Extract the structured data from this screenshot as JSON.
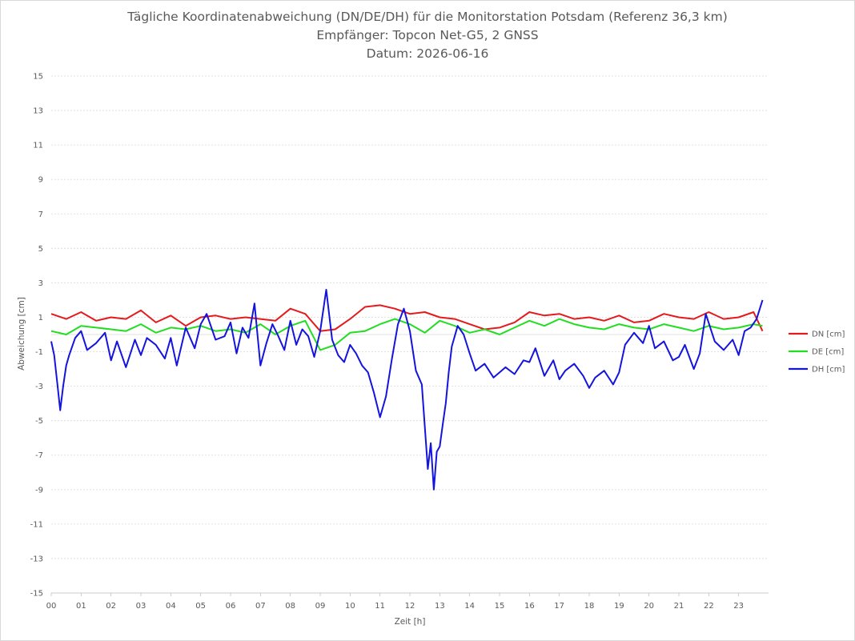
{
  "chart_data": {
    "type": "line",
    "title": "Tägliche Koordinatenabweichung (DN/DE/DH) für die Monitorstation Potsdam (Referenz 36,3 km)",
    "subtitle": "Empfänger: Topcon Net-G5, 2 GNSS",
    "date_line": "Datum: 2026-06-16",
    "xlabel": "Zeit [h]",
    "ylabel": "Abweichung [cm]",
    "xlim": [
      0,
      24
    ],
    "ylim": [
      -15,
      15
    ],
    "x_ticks": [
      "00",
      "01",
      "02",
      "03",
      "04",
      "05",
      "06",
      "07",
      "08",
      "09",
      "10",
      "11",
      "12",
      "13",
      "14",
      "15",
      "16",
      "17",
      "18",
      "19",
      "20",
      "21",
      "22",
      "23"
    ],
    "y_ticks": [
      15,
      13,
      11,
      9,
      7,
      5,
      3,
      1,
      -1,
      -3,
      -5,
      -7,
      -9,
      -11,
      -13,
      -15
    ],
    "y_tick_labels": [
      "15",
      "13",
      "11",
      "9",
      "7",
      "5",
      "3",
      "1",
      "-1",
      "-3",
      "-5",
      "-7",
      "-9",
      "-11",
      "-13",
      "-15"
    ],
    "grid": true,
    "legend_position": "right",
    "series": [
      {
        "name": "DN [cm]",
        "color": "#e41a1c",
        "x": [
          0,
          0.5,
          1,
          1.5,
          2,
          2.5,
          3,
          3.5,
          4,
          4.5,
          5,
          5.5,
          6,
          6.5,
          7,
          7.5,
          8,
          8.5,
          9,
          9.5,
          10,
          10.5,
          11,
          11.5,
          12,
          12.5,
          13,
          13.5,
          14,
          14.5,
          15,
          15.5,
          16,
          16.5,
          17,
          17.5,
          18,
          18.5,
          19,
          19.5,
          20,
          20.5,
          21,
          21.5,
          22,
          22.5,
          23,
          23.5,
          23.8
        ],
        "y": [
          1.2,
          0.9,
          1.3,
          0.8,
          1.0,
          0.9,
          1.4,
          0.7,
          1.1,
          0.5,
          1.0,
          1.1,
          0.9,
          1.0,
          0.9,
          0.8,
          1.5,
          1.2,
          0.2,
          0.3,
          0.9,
          1.6,
          1.7,
          1.5,
          1.2,
          1.3,
          1.0,
          0.9,
          0.6,
          0.3,
          0.4,
          0.7,
          1.3,
          1.1,
          1.2,
          0.9,
          1.0,
          0.8,
          1.1,
          0.7,
          0.8,
          1.2,
          1.0,
          0.9,
          1.3,
          0.9,
          1.0,
          1.3,
          0.2
        ]
      },
      {
        "name": "DE [cm]",
        "color": "#22dd22",
        "x": [
          0,
          0.5,
          1,
          1.5,
          2,
          2.5,
          3,
          3.5,
          4,
          4.5,
          5,
          5.5,
          6,
          6.5,
          7,
          7.5,
          8,
          8.5,
          9,
          9.5,
          10,
          10.5,
          11,
          11.5,
          12,
          12.5,
          13,
          13.5,
          14,
          14.5,
          15,
          15.5,
          16,
          16.5,
          17,
          17.5,
          18,
          18.5,
          19,
          19.5,
          20,
          20.5,
          21,
          21.5,
          22,
          22.5,
          23,
          23.5,
          23.8
        ],
        "y": [
          0.2,
          0.0,
          0.5,
          0.4,
          0.3,
          0.2,
          0.6,
          0.1,
          0.4,
          0.3,
          0.5,
          0.2,
          0.3,
          0.1,
          0.6,
          0.0,
          0.5,
          0.8,
          -0.9,
          -0.6,
          0.1,
          0.2,
          0.6,
          0.9,
          0.6,
          0.1,
          0.8,
          0.5,
          0.1,
          0.3,
          0.0,
          0.4,
          0.8,
          0.5,
          0.9,
          0.6,
          0.4,
          0.3,
          0.6,
          0.4,
          0.3,
          0.6,
          0.4,
          0.2,
          0.5,
          0.3,
          0.4,
          0.6,
          0.5
        ]
      },
      {
        "name": "DH [cm]",
        "color": "#1414dd",
        "x": [
          0,
          0.1,
          0.2,
          0.3,
          0.4,
          0.5,
          0.6,
          0.8,
          1,
          1.2,
          1.5,
          1.8,
          2,
          2.2,
          2.5,
          2.8,
          3,
          3.2,
          3.5,
          3.8,
          4,
          4.2,
          4.5,
          4.8,
          5,
          5.2,
          5.5,
          5.8,
          6,
          6.2,
          6.4,
          6.6,
          6.8,
          7,
          7.2,
          7.4,
          7.6,
          7.8,
          8,
          8.2,
          8.4,
          8.6,
          8.8,
          9,
          9.2,
          9.4,
          9.6,
          9.8,
          10,
          10.2,
          10.4,
          10.6,
          10.8,
          11,
          11.2,
          11.4,
          11.6,
          11.8,
          12,
          12.2,
          12.4,
          12.6,
          12.7,
          12.8,
          12.9,
          13,
          13.1,
          13.2,
          13.3,
          13.4,
          13.6,
          13.8,
          14,
          14.2,
          14.5,
          14.8,
          15,
          15.2,
          15.5,
          15.8,
          16,
          16.2,
          16.5,
          16.8,
          17,
          17.2,
          17.5,
          17.8,
          18,
          18.2,
          18.5,
          18.8,
          19,
          19.2,
          19.5,
          19.8,
          20,
          20.2,
          20.5,
          20.8,
          21,
          21.2,
          21.5,
          21.7,
          21.9,
          22.2,
          22.5,
          22.8,
          23,
          23.2,
          23.4,
          23.6,
          23.8
        ],
        "y": [
          -0.4,
          -1.2,
          -2.8,
          -4.4,
          -3.0,
          -1.8,
          -1.2,
          -0.2,
          0.2,
          -0.9,
          -0.5,
          0.1,
          -1.5,
          -0.4,
          -1.9,
          -0.3,
          -1.2,
          -0.2,
          -0.6,
          -1.4,
          -0.2,
          -1.8,
          0.4,
          -0.8,
          0.6,
          1.2,
          -0.3,
          -0.1,
          0.7,
          -1.1,
          0.4,
          -0.2,
          1.8,
          -1.8,
          -0.5,
          0.6,
          -0.1,
          -0.9,
          0.8,
          -0.6,
          0.3,
          -0.1,
          -1.3,
          0.2,
          2.6,
          -0.3,
          -1.2,
          -1.6,
          -0.6,
          -1.1,
          -1.8,
          -2.2,
          -3.4,
          -4.8,
          -3.6,
          -1.4,
          0.6,
          1.5,
          0.2,
          -2.1,
          -2.9,
          -7.8,
          -6.3,
          -9.0,
          -6.8,
          -6.5,
          -5.2,
          -4.0,
          -2.2,
          -0.7,
          0.5,
          0.0,
          -1.1,
          -2.1,
          -1.7,
          -2.5,
          -2.2,
          -1.9,
          -2.3,
          -1.5,
          -1.6,
          -0.8,
          -2.4,
          -1.5,
          -2.6,
          -2.1,
          -1.7,
          -2.4,
          -3.1,
          -2.5,
          -2.1,
          -2.9,
          -2.2,
          -0.6,
          0.1,
          -0.5,
          0.5,
          -0.8,
          -0.4,
          -1.5,
          -1.3,
          -0.6,
          -2.0,
          -1.1,
          1.2,
          -0.4,
          -0.9,
          -0.3,
          -1.2,
          0.2,
          0.4,
          0.9,
          2.0
        ]
      }
    ]
  }
}
